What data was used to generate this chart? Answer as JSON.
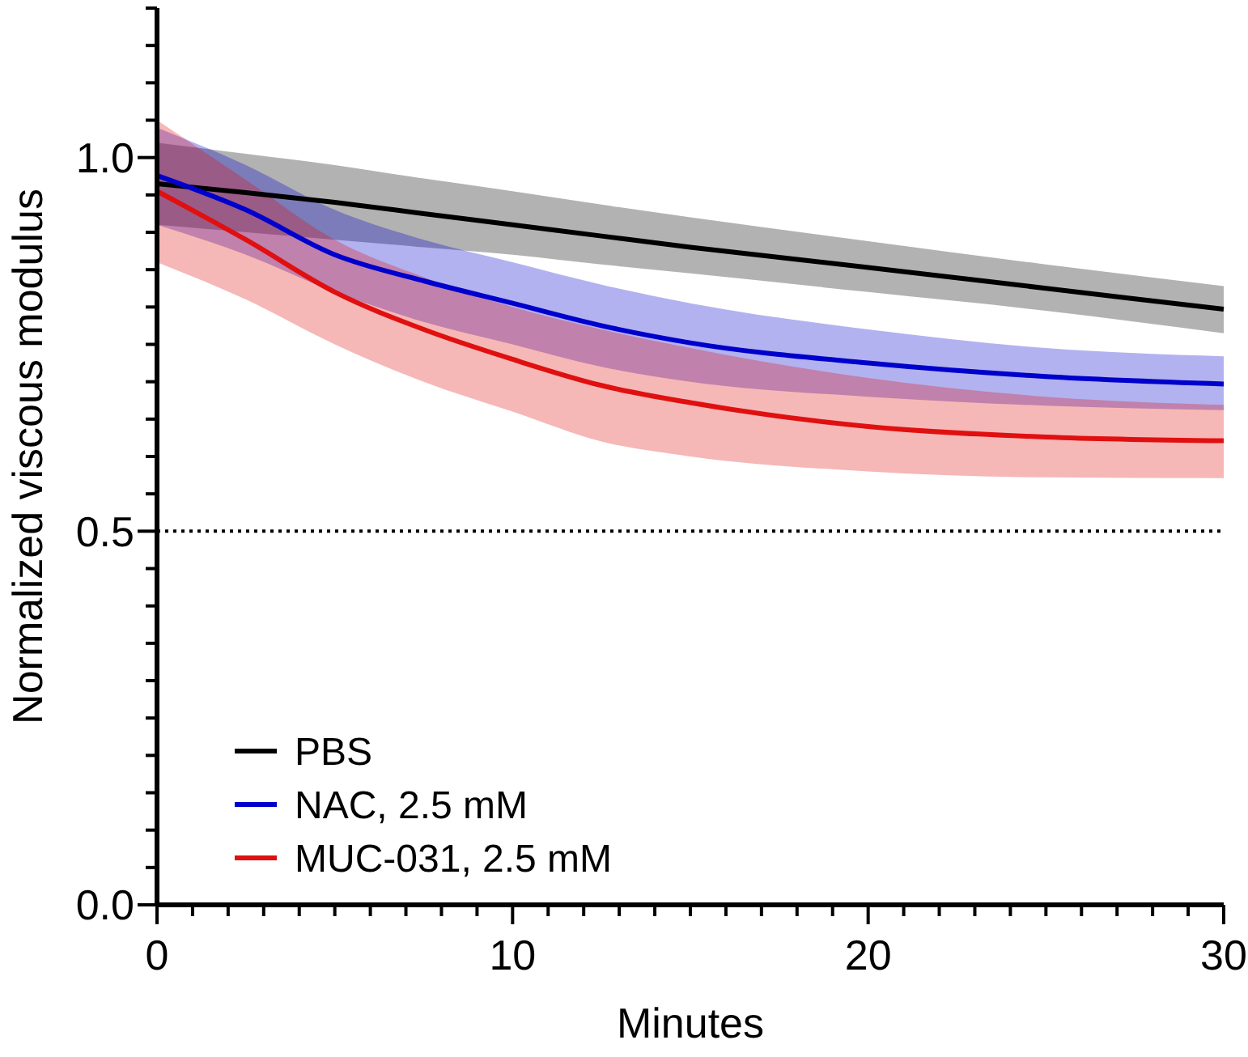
{
  "chart_data": {
    "type": "line",
    "xlabel": "Minutes",
    "ylabel": "Normalized viscous modulus",
    "x": [
      0,
      2.5,
      5,
      7.5,
      10,
      12.5,
      15,
      20,
      25,
      30
    ],
    "series": [
      {
        "name": "PBS",
        "color": "#000000",
        "values": [
          0.965,
          0.953,
          0.94,
          0.925,
          0.91,
          0.895,
          0.88,
          0.853,
          0.825,
          0.797
        ],
        "lower": [
          0.91,
          0.9,
          0.89,
          0.88,
          0.87,
          0.857,
          0.845,
          0.82,
          0.795,
          0.765
        ],
        "upper": [
          1.02,
          1.005,
          0.99,
          0.972,
          0.955,
          0.937,
          0.92,
          0.888,
          0.857,
          0.828
        ]
      },
      {
        "name": "NAC, 2.5 mM",
        "color": "#0000cc",
        "values": [
          0.976,
          0.93,
          0.87,
          0.835,
          0.805,
          0.775,
          0.752,
          0.725,
          0.707,
          0.697
        ],
        "lower": [
          0.91,
          0.87,
          0.82,
          0.78,
          0.75,
          0.72,
          0.7,
          0.68,
          0.668,
          0.662
        ],
        "upper": [
          1.04,
          0.99,
          0.93,
          0.89,
          0.86,
          0.83,
          0.805,
          0.77,
          0.745,
          0.734
        ]
      },
      {
        "name": "MUC-031, 2.5 mM",
        "color": "#e01010",
        "values": [
          0.955,
          0.89,
          0.82,
          0.77,
          0.73,
          0.695,
          0.672,
          0.64,
          0.626,
          0.621
        ],
        "lower": [
          0.86,
          0.81,
          0.75,
          0.7,
          0.66,
          0.62,
          0.6,
          0.58,
          0.572,
          0.571
        ],
        "upper": [
          1.05,
          0.97,
          0.89,
          0.84,
          0.8,
          0.77,
          0.745,
          0.705,
          0.68,
          0.669
        ]
      }
    ],
    "xlim": [
      0,
      30
    ],
    "xticks": [
      0,
      {
        "value": 1,
        "label": null
      },
      {
        "value": 2,
        "label": null
      },
      {
        "value": 3,
        "label": null
      },
      {
        "value": 4,
        "label": null
      },
      {
        "value": 5,
        "label": null
      },
      {
        "value": 6,
        "label": null
      },
      {
        "value": 7,
        "label": null
      },
      {
        "value": 8,
        "label": null
      },
      {
        "value": 9,
        "label": null
      },
      10,
      {
        "value": 11,
        "label": null
      },
      {
        "value": 12,
        "label": null
      },
      {
        "value": 13,
        "label": null
      },
      {
        "value": 14,
        "label": null
      },
      {
        "value": 15,
        "label": null
      },
      {
        "value": 16,
        "label": null
      },
      {
        "value": 17,
        "label": null
      },
      {
        "value": 18,
        "label": null
      },
      {
        "value": 19,
        "label": null
      },
      20,
      {
        "value": 21,
        "label": null
      },
      {
        "value": 22,
        "label": null
      },
      {
        "value": 23,
        "label": null
      },
      {
        "value": 24,
        "label": null
      },
      {
        "value": 25,
        "label": null
      },
      {
        "value": 26,
        "label": null
      },
      {
        "value": 27,
        "label": null
      },
      {
        "value": 28,
        "label": null
      },
      {
        "value": 29,
        "label": null
      },
      30
    ],
    "ylim": [
      0,
      1.2
    ],
    "yticks": [
      {
        "value": 0,
        "label": "0.0"
      },
      {
        "value": 0.05,
        "label": null
      },
      {
        "value": 0.1,
        "label": null
      },
      {
        "value": 0.15,
        "label": null
      },
      {
        "value": 0.2,
        "label": null
      },
      {
        "value": 0.25,
        "label": null
      },
      {
        "value": 0.3,
        "label": null
      },
      {
        "value": 0.35,
        "label": null
      },
      {
        "value": 0.4,
        "label": null
      },
      {
        "value": 0.45,
        "label": null
      },
      {
        "value": 0.5,
        "label": "0.5"
      },
      {
        "value": 0.55,
        "label": null
      },
      {
        "value": 0.6,
        "label": null
      },
      {
        "value": 0.65,
        "label": null
      },
      {
        "value": 0.7,
        "label": null
      },
      {
        "value": 0.75,
        "label": null
      },
      {
        "value": 0.8,
        "label": null
      },
      {
        "value": 0.85,
        "label": null
      },
      {
        "value": 0.9,
        "label": null
      },
      {
        "value": 0.95,
        "label": null
      },
      {
        "value": 1,
        "label": "1.0"
      },
      {
        "value": 1.05,
        "label": null
      },
      {
        "value": 1.1,
        "label": null
      },
      {
        "value": 1.15,
        "label": null
      },
      {
        "value": 1.2,
        "label": null
      }
    ],
    "ref_lines": [
      {
        "axis": "y",
        "value": 0.5,
        "color": "#000000",
        "line_style": "dotted"
      }
    ],
    "legend": "bottom left",
    "grid": false,
    "marker": "none",
    "line_style": "solid"
  }
}
